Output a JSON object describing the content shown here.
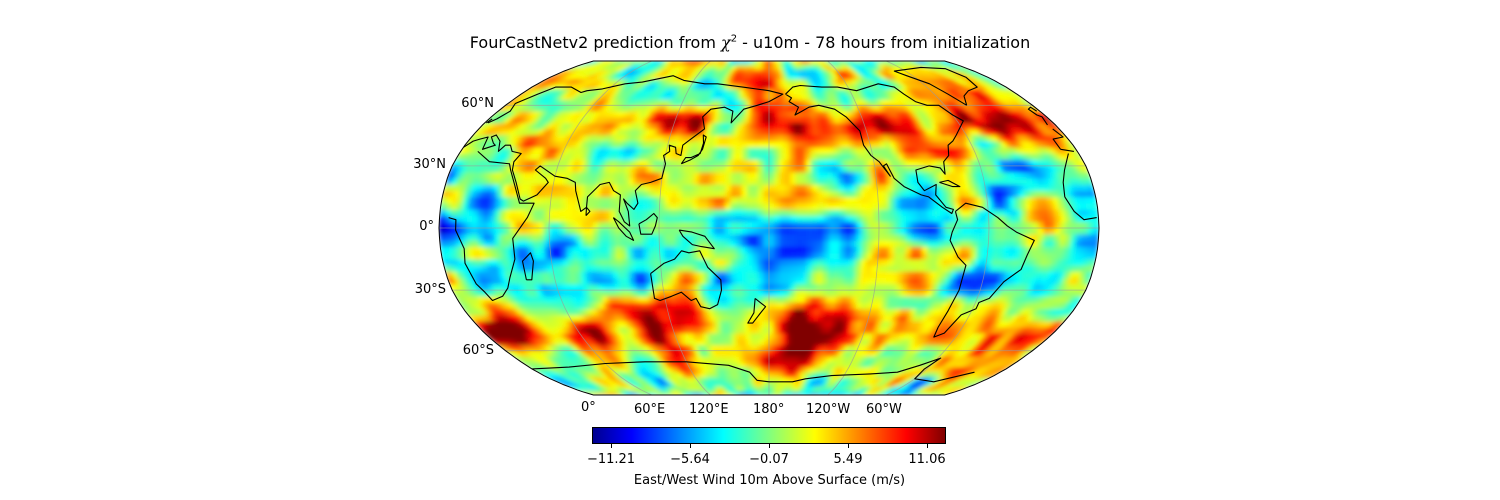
{
  "title": {
    "prefix": "FourCastNetv2 prediction from ",
    "symbol": "χ",
    "superscript": "2",
    "suffix": " - u10m - 78 hours from initialization"
  },
  "map": {
    "projection": "Robinson",
    "central_longitude": 180,
    "variable": "u10m",
    "lat_labels": [
      "60°N",
      "30°N",
      "0°",
      "30°S",
      "60°S"
    ],
    "lon_labels": [
      "0°",
      "60°E",
      "120°E",
      "180°",
      "120°W",
      "60°W"
    ],
    "gridlines": true,
    "coastlines": true
  },
  "colorbar": {
    "colormap": "jet",
    "range": [
      -13.9,
      13.9
    ],
    "ticks": [
      "−11.21",
      "−5.64",
      "−0.07",
      "5.49",
      "11.06"
    ],
    "label": "East/West Wind 10m Above Surface (m/s)"
  }
}
